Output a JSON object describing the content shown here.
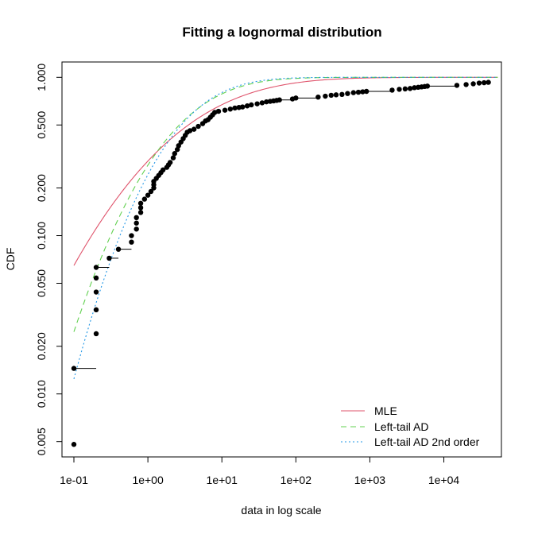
{
  "chart_data": {
    "type": "scatter",
    "title": "Fitting a lognormal distribution",
    "xlabel": "data in log scale",
    "ylabel": "CDF",
    "x_scale": "log",
    "y_scale": "log",
    "xlim": [
      0.069,
      60000
    ],
    "ylim": [
      0.004,
      1.25
    ],
    "x_ticks": [
      0.1,
      1,
      10,
      100,
      1000,
      10000
    ],
    "x_tick_labels": [
      "1e-01",
      "1e+00",
      "1e+01",
      "1e+02",
      "1e+03",
      "1e+04"
    ],
    "y_ticks": [
      0.005,
      0.01,
      0.02,
      0.05,
      0.1,
      0.2,
      0.5,
      1.0
    ],
    "y_tick_labels": [
      "0.005",
      "0.010",
      "0.020",
      "0.050",
      "0.100",
      "0.200",
      "0.500",
      "1.000"
    ],
    "grid": false,
    "legend_position": "bottom-right",
    "lognormal_fits": [
      {
        "name": "MLE",
        "meanlog": 1.26,
        "sdlog": 2.35,
        "color": "#DF536B",
        "dash": "solid"
      },
      {
        "name": "Left-tail AD",
        "meanlog": 0.98,
        "sdlog": 1.67,
        "color": "#61D04F",
        "dash": "dashed"
      },
      {
        "name": "Left-tail AD 2nd order",
        "meanlog": 1.04,
        "sdlog": 1.49,
        "color": "#2297E6",
        "dash": "dotted"
      }
    ],
    "empirical_points": [
      {
        "x": 0.1,
        "y": 0.0048
      },
      {
        "x": 0.1,
        "y": 0.0145,
        "x_end": 0.2
      },
      {
        "x": 0.2,
        "y": 0.024
      },
      {
        "x": 0.2,
        "y": 0.034
      },
      {
        "x": 0.2,
        "y": 0.044
      },
      {
        "x": 0.2,
        "y": 0.054
      },
      {
        "x": 0.2,
        "y": 0.063,
        "x_end": 0.3
      },
      {
        "x": 0.3,
        "y": 0.072,
        "x_end": 0.4
      },
      {
        "x": 0.4,
        "y": 0.082,
        "x_end": 0.6
      },
      {
        "x": 0.6,
        "y": 0.091
      },
      {
        "x": 0.6,
        "y": 0.1
      },
      {
        "x": 0.7,
        "y": 0.11
      },
      {
        "x": 0.7,
        "y": 0.12
      },
      {
        "x": 0.7,
        "y": 0.13
      },
      {
        "x": 0.8,
        "y": 0.14
      },
      {
        "x": 0.8,
        "y": 0.15
      },
      {
        "x": 0.8,
        "y": 0.16
      },
      {
        "x": 0.9,
        "y": 0.17
      },
      {
        "x": 1.0,
        "y": 0.18
      },
      {
        "x": 1.1,
        "y": 0.19
      },
      {
        "x": 1.2,
        "y": 0.2
      },
      {
        "x": 1.2,
        "y": 0.21
      },
      {
        "x": 1.2,
        "y": 0.22
      },
      {
        "x": 1.3,
        "y": 0.23
      },
      {
        "x": 1.4,
        "y": 0.24
      },
      {
        "x": 1.5,
        "y": 0.25
      },
      {
        "x": 1.6,
        "y": 0.26
      },
      {
        "x": 1.8,
        "y": 0.27
      },
      {
        "x": 1.9,
        "y": 0.28
      },
      {
        "x": 2.0,
        "y": 0.29
      },
      {
        "x": 2.2,
        "y": 0.31
      },
      {
        "x": 2.3,
        "y": 0.33
      },
      {
        "x": 2.5,
        "y": 0.35
      },
      {
        "x": 2.6,
        "y": 0.37
      },
      {
        "x": 2.8,
        "y": 0.39
      },
      {
        "x": 3.0,
        "y": 0.41
      },
      {
        "x": 3.2,
        "y": 0.43
      },
      {
        "x": 3.4,
        "y": 0.45
      },
      {
        "x": 3.7,
        "y": 0.46
      },
      {
        "x": 4.2,
        "y": 0.47
      },
      {
        "x": 4.8,
        "y": 0.49
      },
      {
        "x": 5.5,
        "y": 0.51
      },
      {
        "x": 6.0,
        "y": 0.53
      },
      {
        "x": 6.5,
        "y": 0.54
      },
      {
        "x": 7.0,
        "y": 0.56
      },
      {
        "x": 7.5,
        "y": 0.58
      },
      {
        "x": 8.0,
        "y": 0.6
      },
      {
        "x": 9.0,
        "y": 0.61
      },
      {
        "x": 11,
        "y": 0.62
      },
      {
        "x": 13,
        "y": 0.63
      },
      {
        "x": 15,
        "y": 0.64
      },
      {
        "x": 17,
        "y": 0.645
      },
      {
        "x": 19,
        "y": 0.65
      },
      {
        "x": 22,
        "y": 0.66
      },
      {
        "x": 25,
        "y": 0.67
      },
      {
        "x": 30,
        "y": 0.68
      },
      {
        "x": 35,
        "y": 0.69
      },
      {
        "x": 40,
        "y": 0.7
      },
      {
        "x": 45,
        "y": 0.705
      },
      {
        "x": 50,
        "y": 0.71
      },
      {
        "x": 55,
        "y": 0.715
      },
      {
        "x": 60,
        "y": 0.72,
        "x_end": 90
      },
      {
        "x": 90,
        "y": 0.73
      },
      {
        "x": 100,
        "y": 0.74,
        "x_end": 200
      },
      {
        "x": 200,
        "y": 0.75
      },
      {
        "x": 250,
        "y": 0.76
      },
      {
        "x": 300,
        "y": 0.77
      },
      {
        "x": 350,
        "y": 0.775
      },
      {
        "x": 420,
        "y": 0.78
      },
      {
        "x": 500,
        "y": 0.79
      },
      {
        "x": 600,
        "y": 0.8
      },
      {
        "x": 700,
        "y": 0.805
      },
      {
        "x": 800,
        "y": 0.81
      },
      {
        "x": 900,
        "y": 0.815,
        "x_end": 2000
      },
      {
        "x": 2000,
        "y": 0.83
      },
      {
        "x": 2500,
        "y": 0.84
      },
      {
        "x": 3000,
        "y": 0.845
      },
      {
        "x": 3500,
        "y": 0.85
      },
      {
        "x": 4000,
        "y": 0.86
      },
      {
        "x": 4500,
        "y": 0.865
      },
      {
        "x": 5000,
        "y": 0.87
      },
      {
        "x": 5500,
        "y": 0.875
      },
      {
        "x": 6000,
        "y": 0.88,
        "x_end": 15000
      },
      {
        "x": 15000,
        "y": 0.89
      },
      {
        "x": 20000,
        "y": 0.9
      },
      {
        "x": 25000,
        "y": 0.91
      },
      {
        "x": 30000,
        "y": 0.92
      },
      {
        "x": 35000,
        "y": 0.925
      },
      {
        "x": 40000,
        "y": 0.93
      }
    ]
  }
}
